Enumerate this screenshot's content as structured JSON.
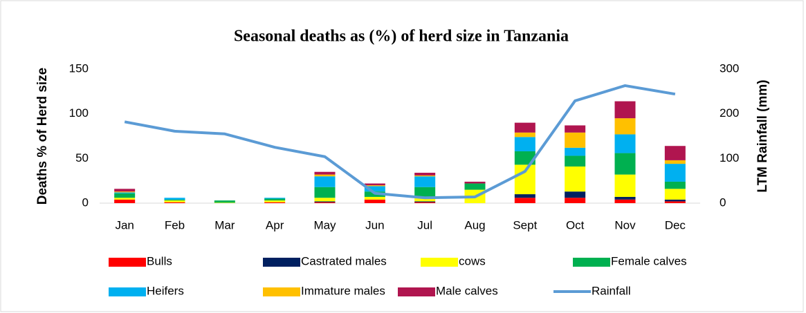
{
  "chart_data": {
    "type": "stacked-bar-line",
    "title": "Seasonal deaths as (%) of herd size in Tanzania",
    "y_label": "Deaths % of Herd size",
    "y2_label": "LTM Rainfall (mm)",
    "categories": [
      "Jan",
      "Feb",
      "Mar",
      "Apr",
      "May",
      "Jun",
      "Jul",
      "Aug",
      "Sept",
      "Oct",
      "Nov",
      "Dec"
    ],
    "ylim": [
      0,
      150
    ],
    "yticks": [
      0,
      50,
      100,
      150
    ],
    "y2lim": [
      0,
      300
    ],
    "y2ticks": [
      0,
      100,
      200,
      300
    ],
    "series": [
      {
        "name": "Bulls",
        "color": "#ff0000",
        "values": [
          4,
          1,
          0,
          1,
          1,
          4,
          1,
          0,
          6,
          6,
          4,
          2
        ]
      },
      {
        "name": "Castrated males",
        "color": "#002060",
        "values": [
          0,
          0,
          0,
          0,
          1,
          0,
          1,
          0,
          4,
          7,
          3,
          2
        ]
      },
      {
        "name": "cows",
        "color": "#ffff00",
        "values": [
          2,
          2,
          0.5,
          2,
          4,
          3,
          4,
          15,
          33,
          28,
          25,
          12
        ]
      },
      {
        "name": "Female calves",
        "color": "#00b050",
        "values": [
          5,
          1,
          2.5,
          2,
          12,
          6,
          12,
          7,
          15,
          12,
          24,
          8
        ]
      },
      {
        "name": "Heifers",
        "color": "#00b0f0",
        "values": [
          1,
          2,
          0,
          1,
          12,
          6,
          12,
          0,
          16,
          9,
          21,
          20
        ]
      },
      {
        "name": "Immature males",
        "color": "#ffc000",
        "values": [
          1,
          0,
          0,
          0,
          2,
          1,
          1,
          0,
          5,
          17,
          18,
          4
        ]
      },
      {
        "name": "Male calves",
        "color": "#b0154f",
        "values": [
          3,
          0,
          0,
          0,
          3,
          2,
          3,
          2,
          11,
          8,
          19,
          16
        ]
      },
      {
        "name": "Rainfall",
        "color": "#5b9bd5",
        "axis": "y2",
        "values": [
          182,
          161,
          155,
          125,
          104,
          22,
          12,
          14,
          71,
          229,
          263,
          244
        ]
      }
    ]
  }
}
